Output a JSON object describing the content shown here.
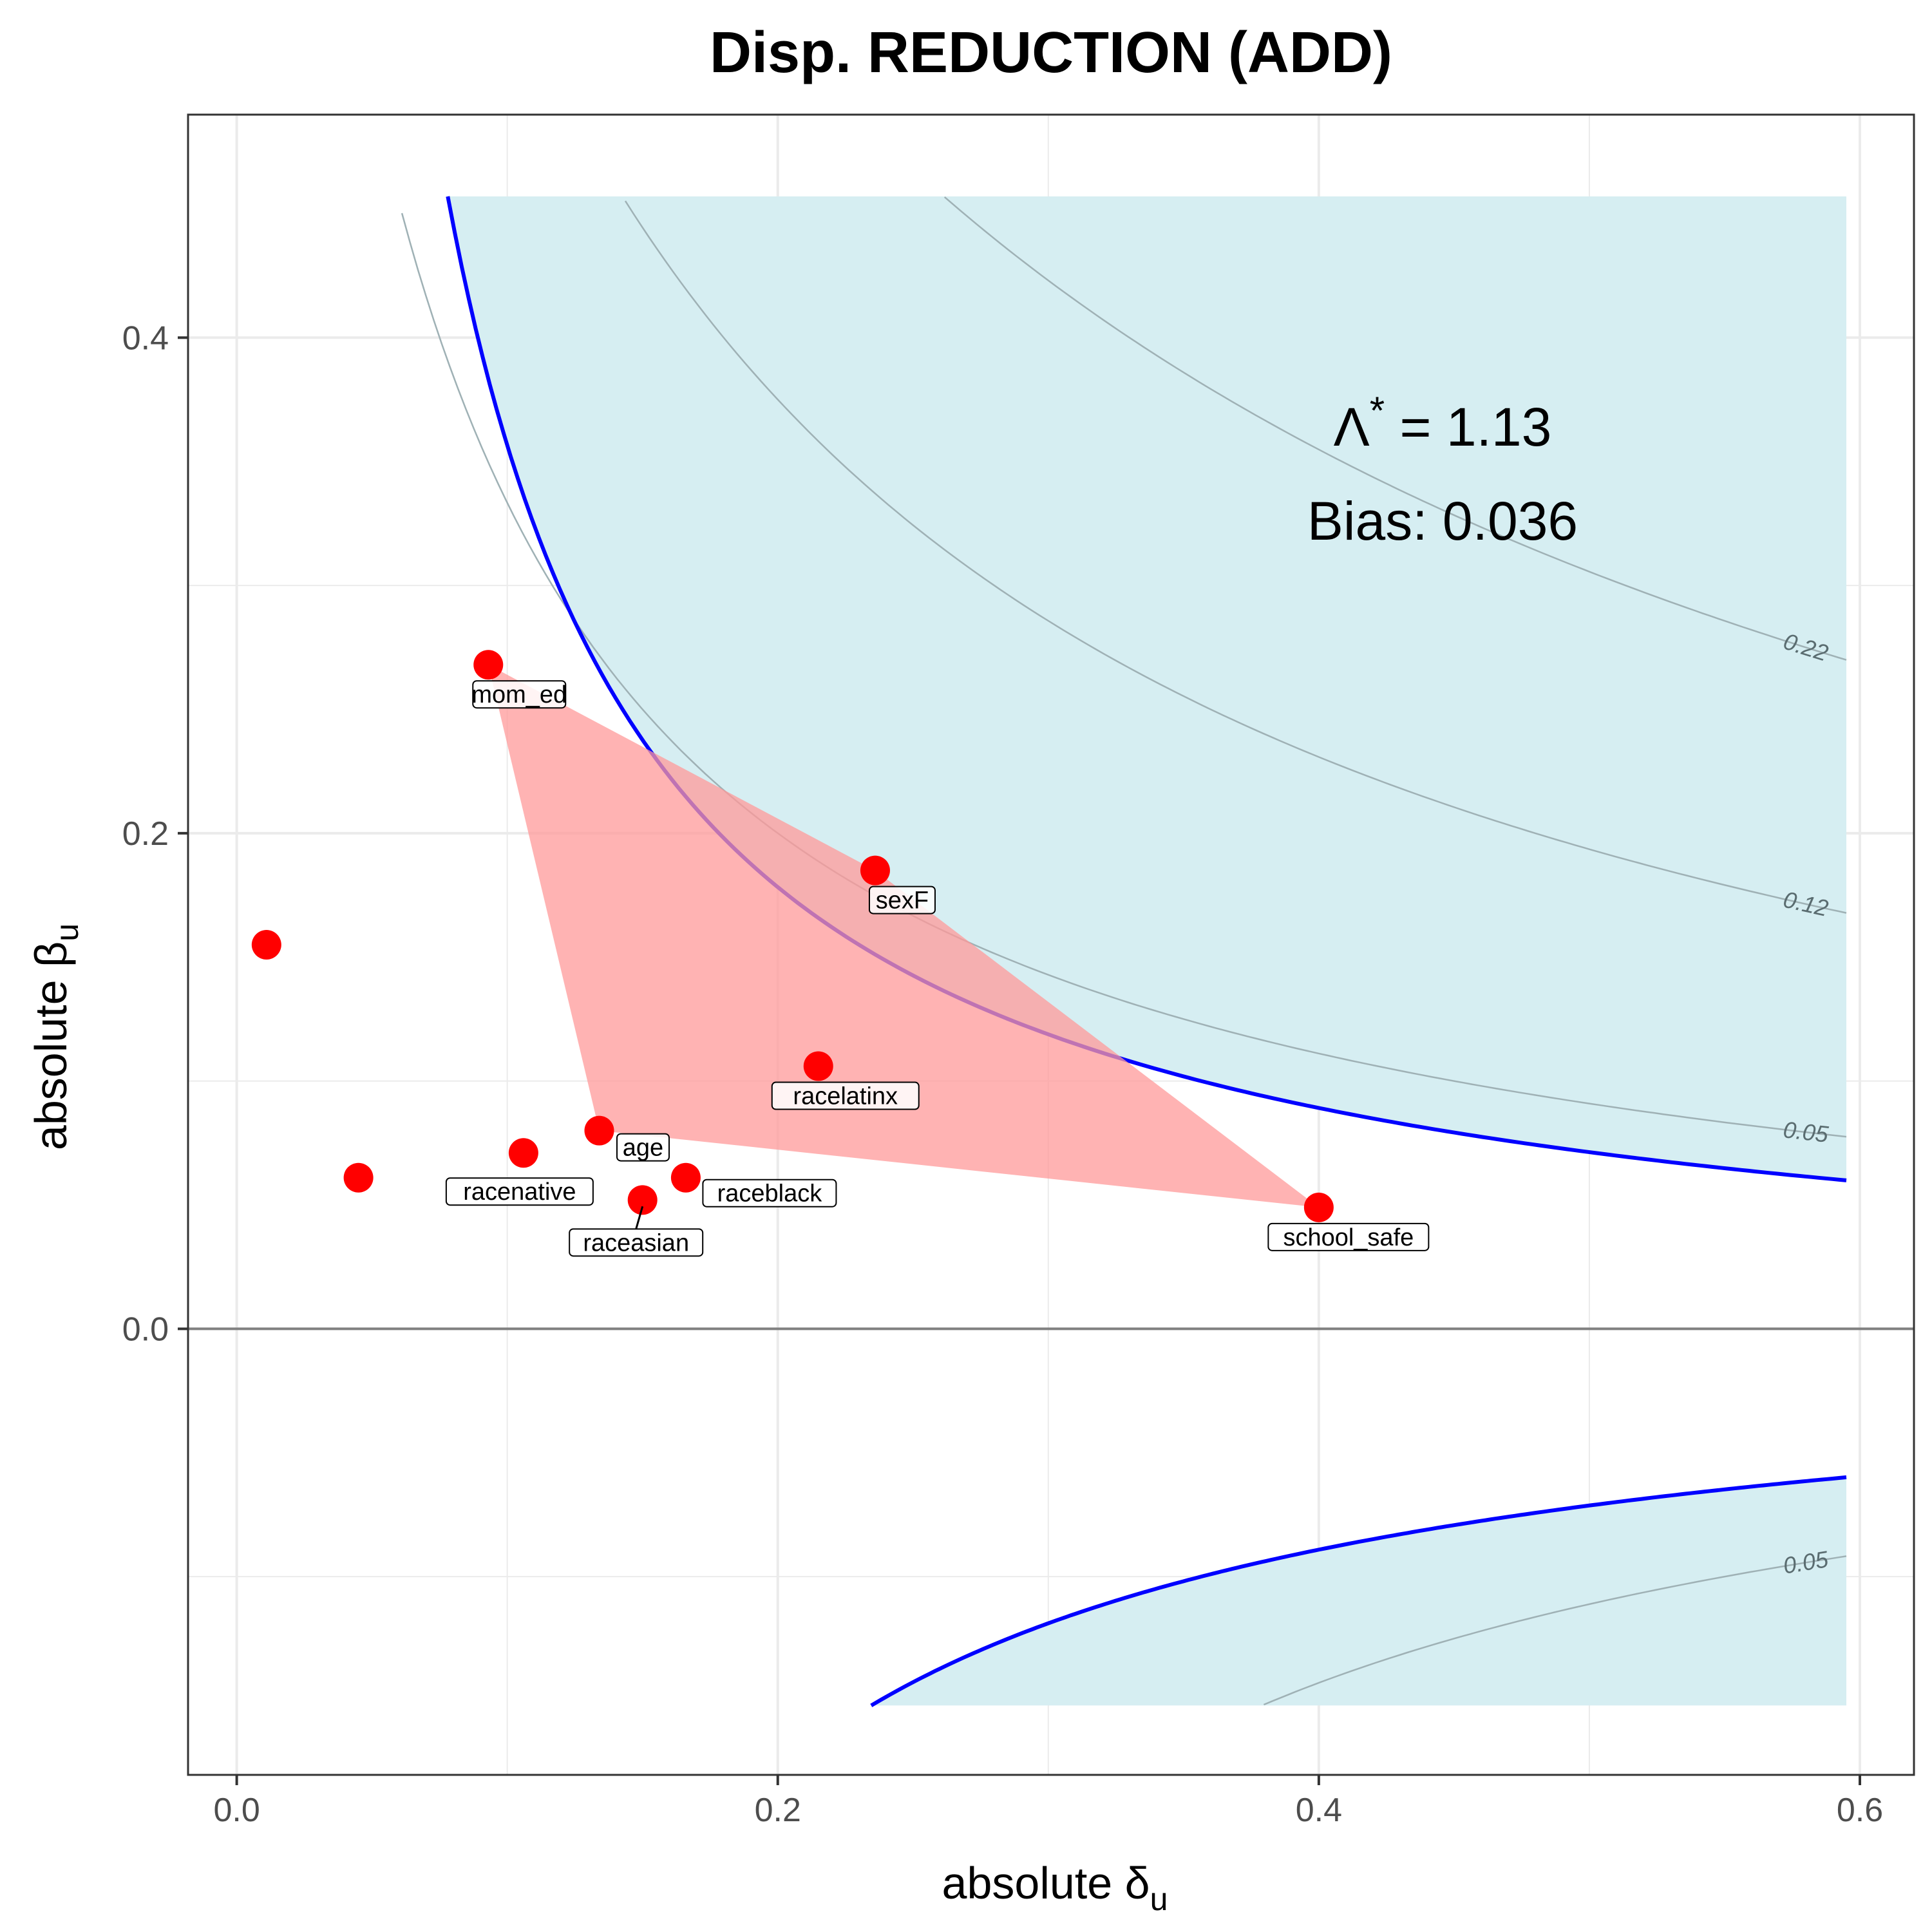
{
  "chart_data": {
    "type": "scatter",
    "title": "Disp. REDUCTION (ADD)",
    "xlabel_main": "absolute δ",
    "xlabel_sub": "u",
    "ylabel_main": "absolute β",
    "ylabel_sub": "u",
    "xlim": [
      -0.018,
      0.62
    ],
    "ylim": [
      -0.18,
      0.49
    ],
    "x_ticks": [
      0.0,
      0.2,
      0.4,
      0.6
    ],
    "x_tick_labels": [
      "0.0",
      "0.2",
      "0.4",
      "0.6"
    ],
    "y_ticks": [
      0.0,
      0.2,
      0.4
    ],
    "y_tick_labels": [
      "0.0",
      "0.2",
      "0.4"
    ],
    "grid": true,
    "annotation_lambda_symbol": "Λ",
    "annotation_lambda_star": "*",
    "annotation_lambda_rest": " = 1.13",
    "annotation_bias": "Bias: 0.036",
    "lambda_value": 1.13,
    "bias_value": 0.036,
    "boundary_product": 0.03565,
    "shaded_region": {
      "x_max": 0.595,
      "y_top": 0.457,
      "y_bottom": -0.152
    },
    "contours": [
      {
        "level": 0.05,
        "label": "0.05"
      },
      {
        "level": 0.12,
        "label": "0.12"
      },
      {
        "level": 0.22,
        "label": "0.22"
      }
    ],
    "negative_contour": {
      "level": 0.05,
      "label": "0.05"
    },
    "points": [
      {
        "x": 0.093,
        "y": 0.268,
        "label": "mom_ed"
      },
      {
        "x": 0.236,
        "y": 0.185,
        "label": "sexF"
      },
      {
        "x": 0.215,
        "y": 0.106,
        "label": "racelatinx"
      },
      {
        "x": 0.134,
        "y": 0.08,
        "label": "age"
      },
      {
        "x": 0.106,
        "y": 0.071,
        "label": "racenative"
      },
      {
        "x": 0.166,
        "y": 0.061,
        "label": "raceblack"
      },
      {
        "x": 0.15,
        "y": 0.052,
        "label": "raceasian"
      },
      {
        "x": 0.4,
        "y": 0.049,
        "label": "school_safe"
      },
      {
        "x": 0.011,
        "y": 0.155,
        "label": ""
      },
      {
        "x": 0.045,
        "y": 0.061,
        "label": ""
      }
    ],
    "hull_labels": [
      "mom_ed",
      "sexF",
      "school_safe",
      "age"
    ],
    "colors": {
      "point": "#ff0000",
      "boundary": "#0000ff",
      "region": "#d6eef2",
      "hull": "#ff9999",
      "contour": "#9fb1b5",
      "grid": "#ebebeb",
      "zero_line": "#808080"
    }
  }
}
